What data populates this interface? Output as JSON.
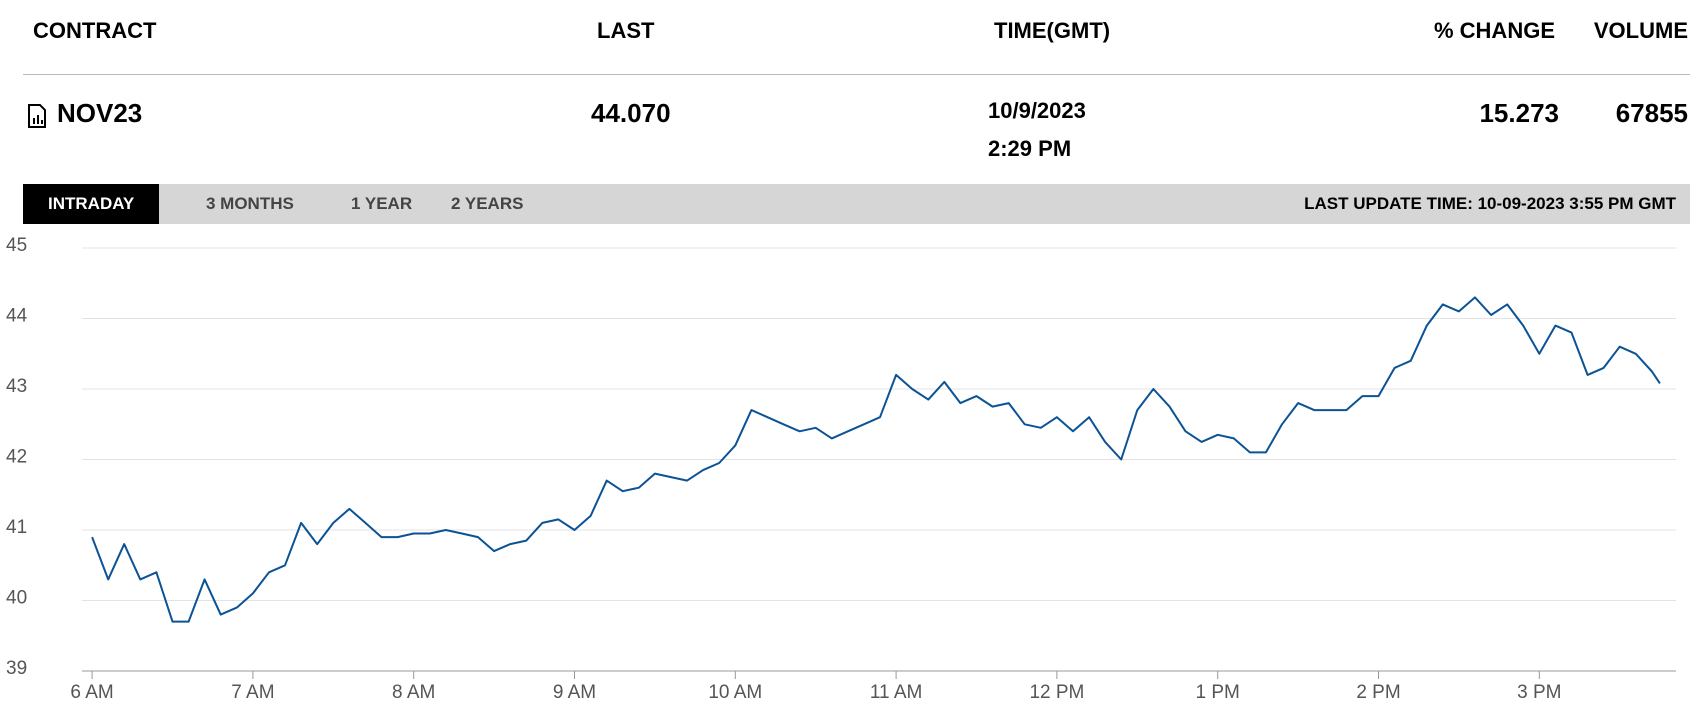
{
  "header": {
    "columns": [
      "CONTRACT",
      "LAST",
      "TIME(GMT)",
      "% CHANGE",
      "VOLUME"
    ]
  },
  "row": {
    "contract": "NOV23",
    "last": "44.070",
    "date": "10/9/2023",
    "time": "2:29 PM",
    "change": "15.273",
    "volume": "67855"
  },
  "tabs": [
    "INTRADAY",
    "3 MONTHS",
    "1 YEAR",
    "2 YEARS"
  ],
  "last_update": "LAST UPDATE TIME: 10-09-2023 3:55 PM GMT",
  "chart_data": {
    "type": "line",
    "grid": true,
    "x": [
      6.0,
      6.1,
      6.2,
      6.3,
      6.4,
      6.5,
      6.6,
      6.7,
      6.8,
      6.9,
      7.0,
      7.1,
      7.2,
      7.3,
      7.4,
      7.5,
      7.6,
      7.7,
      7.8,
      7.9,
      8.0,
      8.1,
      8.2,
      8.3,
      8.4,
      8.5,
      8.6,
      8.7,
      8.8,
      8.9,
      9.0,
      9.1,
      9.2,
      9.3,
      9.4,
      9.5,
      9.6,
      9.7,
      9.8,
      9.9,
      10.0,
      10.1,
      10.2,
      10.3,
      10.4,
      10.5,
      10.6,
      10.7,
      10.8,
      10.9,
      11.0,
      11.1,
      11.2,
      11.3,
      11.4,
      11.5,
      11.6,
      11.7,
      11.8,
      11.9,
      12.0,
      12.1,
      12.2,
      12.3,
      12.4,
      12.5,
      12.6,
      12.7,
      12.8,
      12.9,
      13.0,
      13.1,
      13.2,
      13.3,
      13.4,
      13.5,
      13.6,
      13.7,
      13.8,
      13.9,
      14.0,
      14.1,
      14.2,
      14.3,
      14.4,
      14.5,
      14.6,
      14.7,
      14.8,
      14.9,
      15.0,
      15.1,
      15.2,
      15.3,
      15.4,
      15.5,
      15.6,
      15.7,
      15.75
    ],
    "series": [
      {
        "name": "NOV23",
        "color": "#0b5394",
        "values": [
          40.9,
          40.3,
          40.8,
          40.3,
          40.4,
          39.7,
          39.7,
          40.3,
          39.8,
          39.9,
          40.1,
          40.4,
          40.5,
          41.1,
          40.8,
          41.1,
          41.3,
          41.1,
          40.9,
          40.9,
          40.95,
          40.95,
          41.0,
          40.95,
          40.9,
          40.7,
          40.8,
          40.85,
          41.1,
          41.15,
          41.0,
          41.2,
          41.7,
          41.55,
          41.6,
          41.8,
          41.75,
          41.7,
          41.85,
          41.95,
          42.2,
          42.7,
          42.6,
          42.5,
          42.4,
          42.45,
          42.3,
          42.4,
          42.5,
          42.6,
          43.2,
          43.0,
          42.85,
          43.1,
          42.8,
          42.9,
          42.75,
          42.8,
          42.5,
          42.45,
          42.6,
          42.4,
          42.6,
          42.25,
          42.0,
          42.7,
          43.0,
          42.75,
          42.4,
          42.25,
          42.35,
          42.3,
          42.1,
          42.1,
          42.5,
          42.8,
          42.7,
          42.7,
          42.7,
          42.9,
          42.9,
          43.3,
          43.4,
          43.9,
          44.2,
          44.1,
          44.3,
          44.05,
          44.2,
          43.9,
          43.5,
          43.9,
          43.8,
          43.2,
          43.3,
          43.6,
          43.5,
          43.25,
          43.08
        ]
      }
    ],
    "xlim": [
      5.9,
      15.85
    ],
    "xticks": [
      {
        "value": 6,
        "label": "6 AM"
      },
      {
        "value": 7,
        "label": "7 AM"
      },
      {
        "value": 8,
        "label": "8 AM"
      },
      {
        "value": 9,
        "label": "9 AM"
      },
      {
        "value": 10,
        "label": "10 AM"
      },
      {
        "value": 11,
        "label": "11 AM"
      },
      {
        "value": 12,
        "label": "12 PM"
      },
      {
        "value": 13,
        "label": "1 PM"
      },
      {
        "value": 14,
        "label": "2 PM"
      },
      {
        "value": 15,
        "label": "3 PM"
      }
    ],
    "ylim": [
      39,
      45
    ],
    "yticks": [
      39,
      40,
      41,
      42,
      43,
      44,
      45
    ]
  }
}
